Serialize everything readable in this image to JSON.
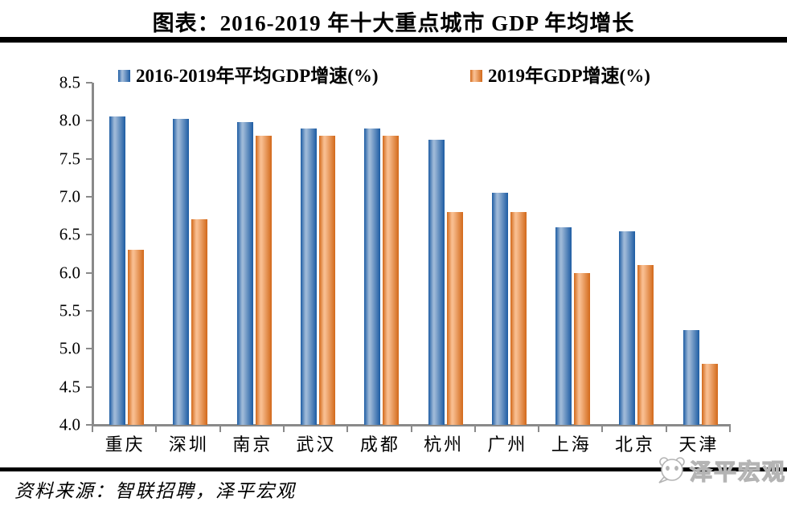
{
  "page": {
    "source_note": "资料来源：智联招聘，泽平宏观",
    "watermark": "泽平宏观",
    "watermark_icon": "panda-chat-icon"
  },
  "colors": {
    "axis": "#8a8a8a",
    "rule": "#000000",
    "blue_dark": "#1d5ca3",
    "blue_light": "#9db8d7",
    "orange_dark": "#d2691a",
    "orange_light": "#f8bd8f",
    "watermark_gray": "#b4b4b4"
  },
  "chart_data": {
    "type": "bar",
    "title": "图表：2016-2019 年十大重点城市 GDP 年均增长",
    "categories": [
      "重庆",
      "深圳",
      "南京",
      "武汉",
      "成都",
      "杭州",
      "广州",
      "上海",
      "北京",
      "天津"
    ],
    "series": [
      {
        "name": "2016-2019年平均GDP增速(%)",
        "color_dark": "#1d5ca3",
        "color_light": "#9db8d7",
        "values": [
          8.06,
          8.02,
          7.98,
          7.9,
          7.9,
          7.75,
          7.05,
          6.6,
          6.55,
          5.25
        ]
      },
      {
        "name": "2019年GDP增速(%)",
        "color_dark": "#d2691a",
        "color_light": "#f8bd8f",
        "values": [
          6.3,
          6.7,
          7.8,
          7.8,
          7.8,
          6.8,
          6.8,
          6.0,
          6.1,
          4.8
        ]
      }
    ],
    "ylim": [
      4.0,
      8.5
    ],
    "ytick_step": 0.5,
    "ytick_labels": [
      "4.0",
      "4.5",
      "5.0",
      "5.5",
      "6.0",
      "6.5",
      "7.0",
      "7.5",
      "8.0",
      "8.5"
    ],
    "xlabel": "",
    "ylabel": "",
    "grid": false,
    "legend_position": "top"
  }
}
